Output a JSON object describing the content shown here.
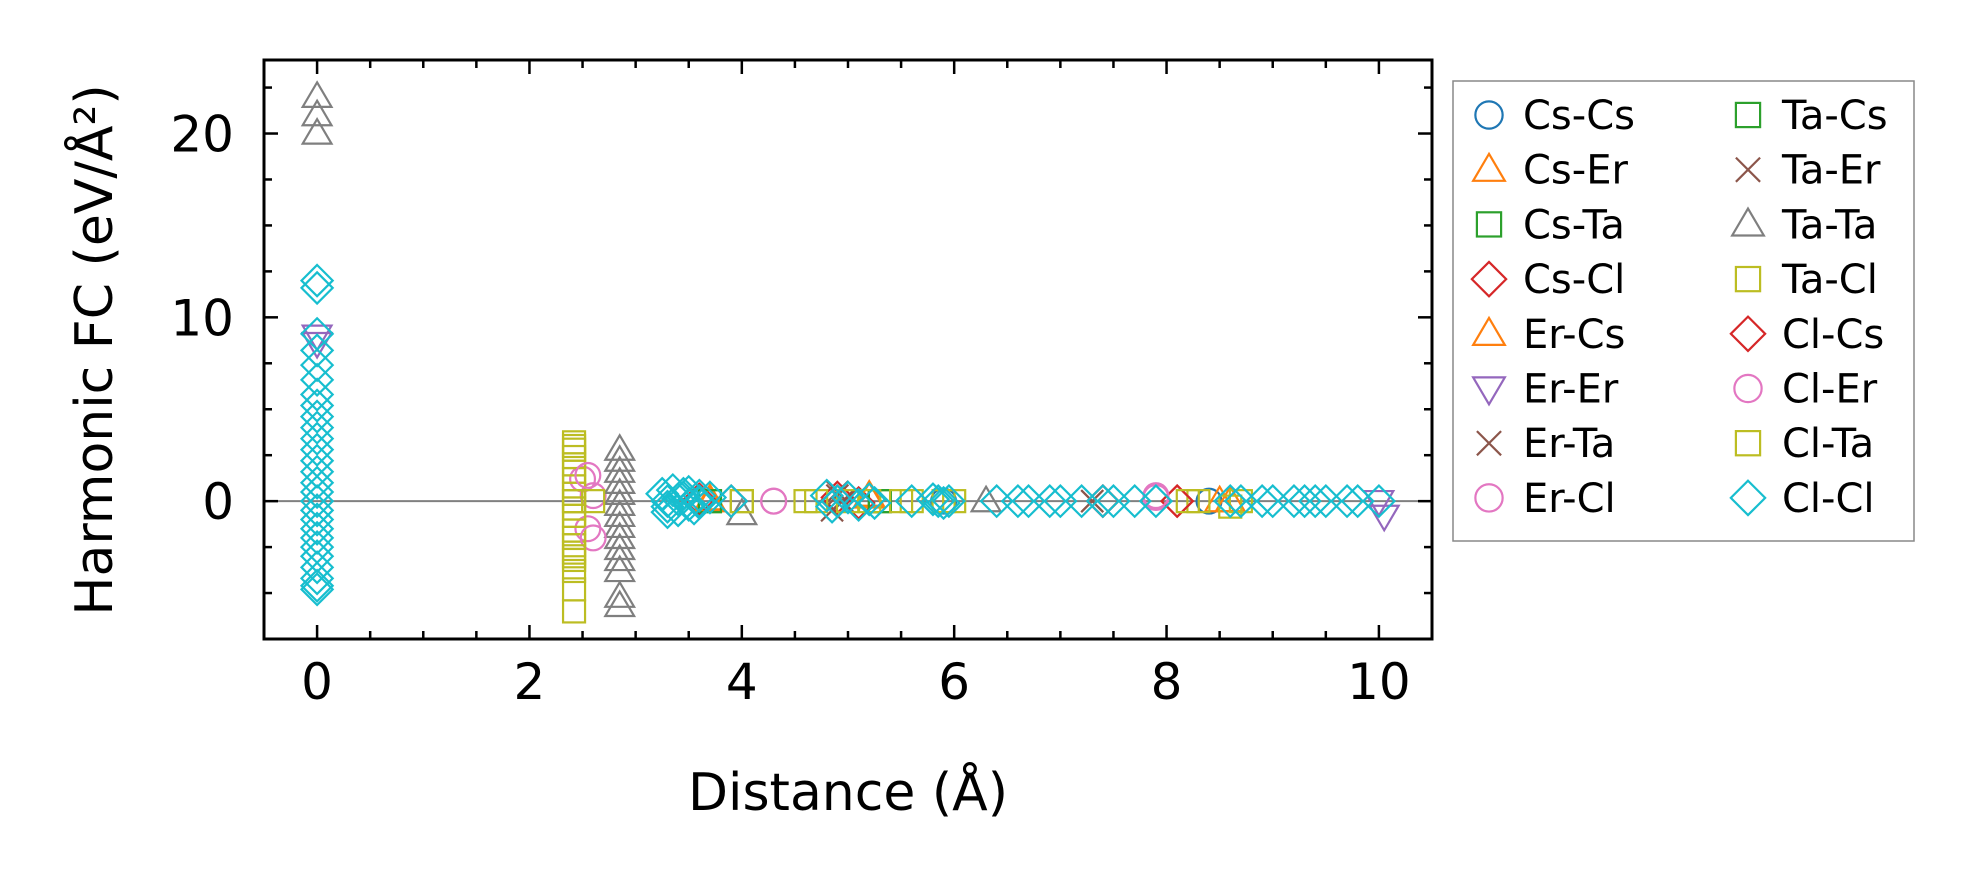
{
  "chart_data": {
    "type": "scatter",
    "title": "",
    "xlabel": "Distance (Å)",
    "ylabel": "Harmonic FC (eV/Å²)",
    "xlim": [
      -0.5,
      10.5
    ],
    "ylim": [
      -7.5,
      24
    ],
    "xticks": [
      0,
      2,
      4,
      6,
      8,
      10
    ],
    "yticks": [
      0,
      10,
      20
    ],
    "xtick_labels": [
      "0",
      "2",
      "4",
      "6",
      "8",
      "10"
    ],
    "ytick_labels": [
      "0",
      "10",
      "20"
    ],
    "reference_line_y": 0,
    "legend_position": "outside-right",
    "series": [
      {
        "name": "Cs-Cs",
        "marker": "circle",
        "color": "#1f77b4",
        "x": [
          5.9,
          8.4
        ],
        "y": [
          0,
          0
        ]
      },
      {
        "name": "Cs-Er",
        "marker": "triangle-up",
        "color": "#ff7f0e",
        "x": [
          3.7,
          5.2,
          8.5
        ],
        "y": [
          0.1,
          0.3,
          0
        ]
      },
      {
        "name": "Cs-Ta",
        "marker": "square",
        "color": "#2ca02c",
        "x": [
          3.7,
          5.3
        ],
        "y": [
          0,
          0
        ]
      },
      {
        "name": "Cs-Cl",
        "marker": "diamond",
        "color": "#d62728",
        "x": [
          3.6,
          3.9,
          4.9,
          5.1,
          7.4,
          8.1
        ],
        "y": [
          0.1,
          0,
          0.2,
          -0.1,
          0,
          0
        ]
      },
      {
        "name": "Er-Cs",
        "marker": "triangle-up",
        "color": "#ff7f0e",
        "x": [
          3.7,
          5.2,
          8.6
        ],
        "y": [
          0,
          0.2,
          0
        ]
      },
      {
        "name": "Er-Er",
        "marker": "triangle-down",
        "color": "#9467bd",
        "x": [
          0,
          0,
          10.0,
          10.05
        ],
        "y": [
          9,
          8.6,
          0,
          -0.8
        ]
      },
      {
        "name": "Er-Ta",
        "marker": "x",
        "color": "#8c564b",
        "x": [
          4.9,
          4.85,
          4.95,
          7.3
        ],
        "y": [
          0.5,
          -0.5,
          0,
          0
        ]
      },
      {
        "name": "Er-Cl",
        "marker": "circle",
        "color": "#e377c2",
        "x": [
          2.5,
          2.55,
          2.6,
          4.3,
          7.9
        ],
        "y": [
          1.2,
          -1.5,
          0.3,
          0,
          0.2
        ]
      },
      {
        "name": "Ta-Cs",
        "marker": "square",
        "color": "#2ca02c",
        "x": [
          3.7,
          5.3
        ],
        "y": [
          0,
          0
        ]
      },
      {
        "name": "Ta-Er",
        "marker": "x",
        "color": "#8c564b",
        "x": [
          4.9,
          7.3
        ],
        "y": [
          0.3,
          0
        ]
      },
      {
        "name": "Ta-Ta",
        "marker": "triangle-up",
        "color": "#7f7f7f",
        "x": [
          0,
          0,
          0,
          2.85,
          2.85,
          2.85,
          2.85,
          2.85,
          2.85,
          2.85,
          2.85,
          2.85,
          2.85,
          2.85,
          2.85,
          2.85,
          2.85,
          4.0,
          6.3
        ],
        "y": [
          22,
          21,
          20,
          2.8,
          2.2,
          1.6,
          1.0,
          0.4,
          -0.2,
          -0.8,
          -1.4,
          -2.0,
          -2.6,
          -3.2,
          -3.8,
          -5.2,
          -5.7,
          -0.7,
          0
        ]
      },
      {
        "name": "Ta-Cl",
        "marker": "square",
        "color": "#bcbd22",
        "x": [
          2.42,
          2.42,
          2.42,
          2.42,
          2.42,
          2.42,
          2.42,
          2.42,
          2.42,
          2.42,
          2.42,
          2.42,
          2.42,
          2.42,
          2.42,
          2.42,
          2.42,
          2.42,
          2.42,
          2.42,
          2.6,
          4.0,
          4.6,
          5.0,
          5.5,
          5.9,
          8.3,
          8.6
        ],
        "y": [
          3.2,
          2.8,
          2.4,
          2.0,
          1.6,
          1.2,
          0.8,
          0.4,
          0,
          -0.4,
          -0.8,
          -1.2,
          -1.6,
          -2.0,
          -2.4,
          -2.8,
          -3.2,
          -3.8,
          -4.8,
          -6.0,
          0,
          0,
          0,
          0,
          0,
          0,
          0,
          -0.3
        ]
      },
      {
        "name": "Cl-Cs",
        "marker": "diamond",
        "color": "#d62728",
        "x": [
          3.6,
          4.9,
          7.4,
          8.1
        ],
        "y": [
          0,
          0,
          0,
          0
        ]
      },
      {
        "name": "Cl-Er",
        "marker": "circle",
        "color": "#e377c2",
        "x": [
          2.55,
          2.6,
          4.3,
          7.9
        ],
        "y": [
          1.4,
          -2.0,
          0,
          0.3
        ]
      },
      {
        "name": "Cl-Ta",
        "marker": "square",
        "color": "#bcbd22",
        "x": [
          2.42,
          2.42,
          2.42,
          4.0,
          4.7,
          5.2,
          5.6,
          6.0,
          8.2,
          8.7
        ],
        "y": [
          3.0,
          0,
          -3.0,
          0,
          0,
          0,
          0,
          0,
          0,
          0
        ]
      },
      {
        "name": "Cl-Cl",
        "marker": "diamond",
        "color": "#17becf",
        "x": [
          0,
          0,
          0,
          0,
          0,
          0,
          0,
          0,
          0,
          0,
          0,
          0,
          0,
          0,
          0,
          0,
          0,
          0,
          0,
          0,
          0,
          0,
          0,
          0,
          0,
          0,
          0,
          3.25,
          3.3,
          3.35,
          3.4,
          3.45,
          3.5,
          3.55,
          3.6,
          3.3,
          3.4,
          3.5,
          3.6,
          3.7,
          3.3,
          3.45,
          3.6,
          3.9,
          4.8,
          4.85,
          4.9,
          5.0,
          5.1,
          5.2,
          5.25,
          5.6,
          5.8,
          5.85,
          5.9,
          5.95,
          6.4,
          6.6,
          6.7,
          6.9,
          7.0,
          7.2,
          7.4,
          7.5,
          7.7,
          7.9,
          8.6,
          8.7,
          8.9,
          9.0,
          9.2,
          9.3,
          9.4,
          9.5,
          9.7,
          9.8,
          10.0
        ],
        "y": [
          12,
          11.6,
          9.1,
          8.2,
          7.4,
          6.6,
          5.8,
          5.2,
          4.6,
          4.0,
          3.4,
          2.8,
          2.2,
          1.6,
          1.0,
          0.5,
          0,
          -0.5,
          -1.0,
          -1.5,
          -2.0,
          -2.5,
          -3.0,
          -3.6,
          -4.2,
          -4.6,
          -4.8,
          0.4,
          -0.3,
          0.6,
          -0.5,
          0.2,
          0.5,
          -0.4,
          0.3,
          0,
          0.1,
          -0.2,
          0,
          0.2,
          -0.6,
          0.4,
          -0.1,
          0,
          0.3,
          -0.3,
          0,
          0.2,
          -0.2,
          0.1,
          -0.1,
          0,
          0.1,
          0,
          -0.1,
          0,
          0,
          0,
          0,
          0,
          0,
          0,
          0,
          0,
          0,
          0,
          0,
          0,
          0,
          0,
          0,
          0,
          0,
          0,
          0,
          0,
          0
        ]
      }
    ]
  }
}
